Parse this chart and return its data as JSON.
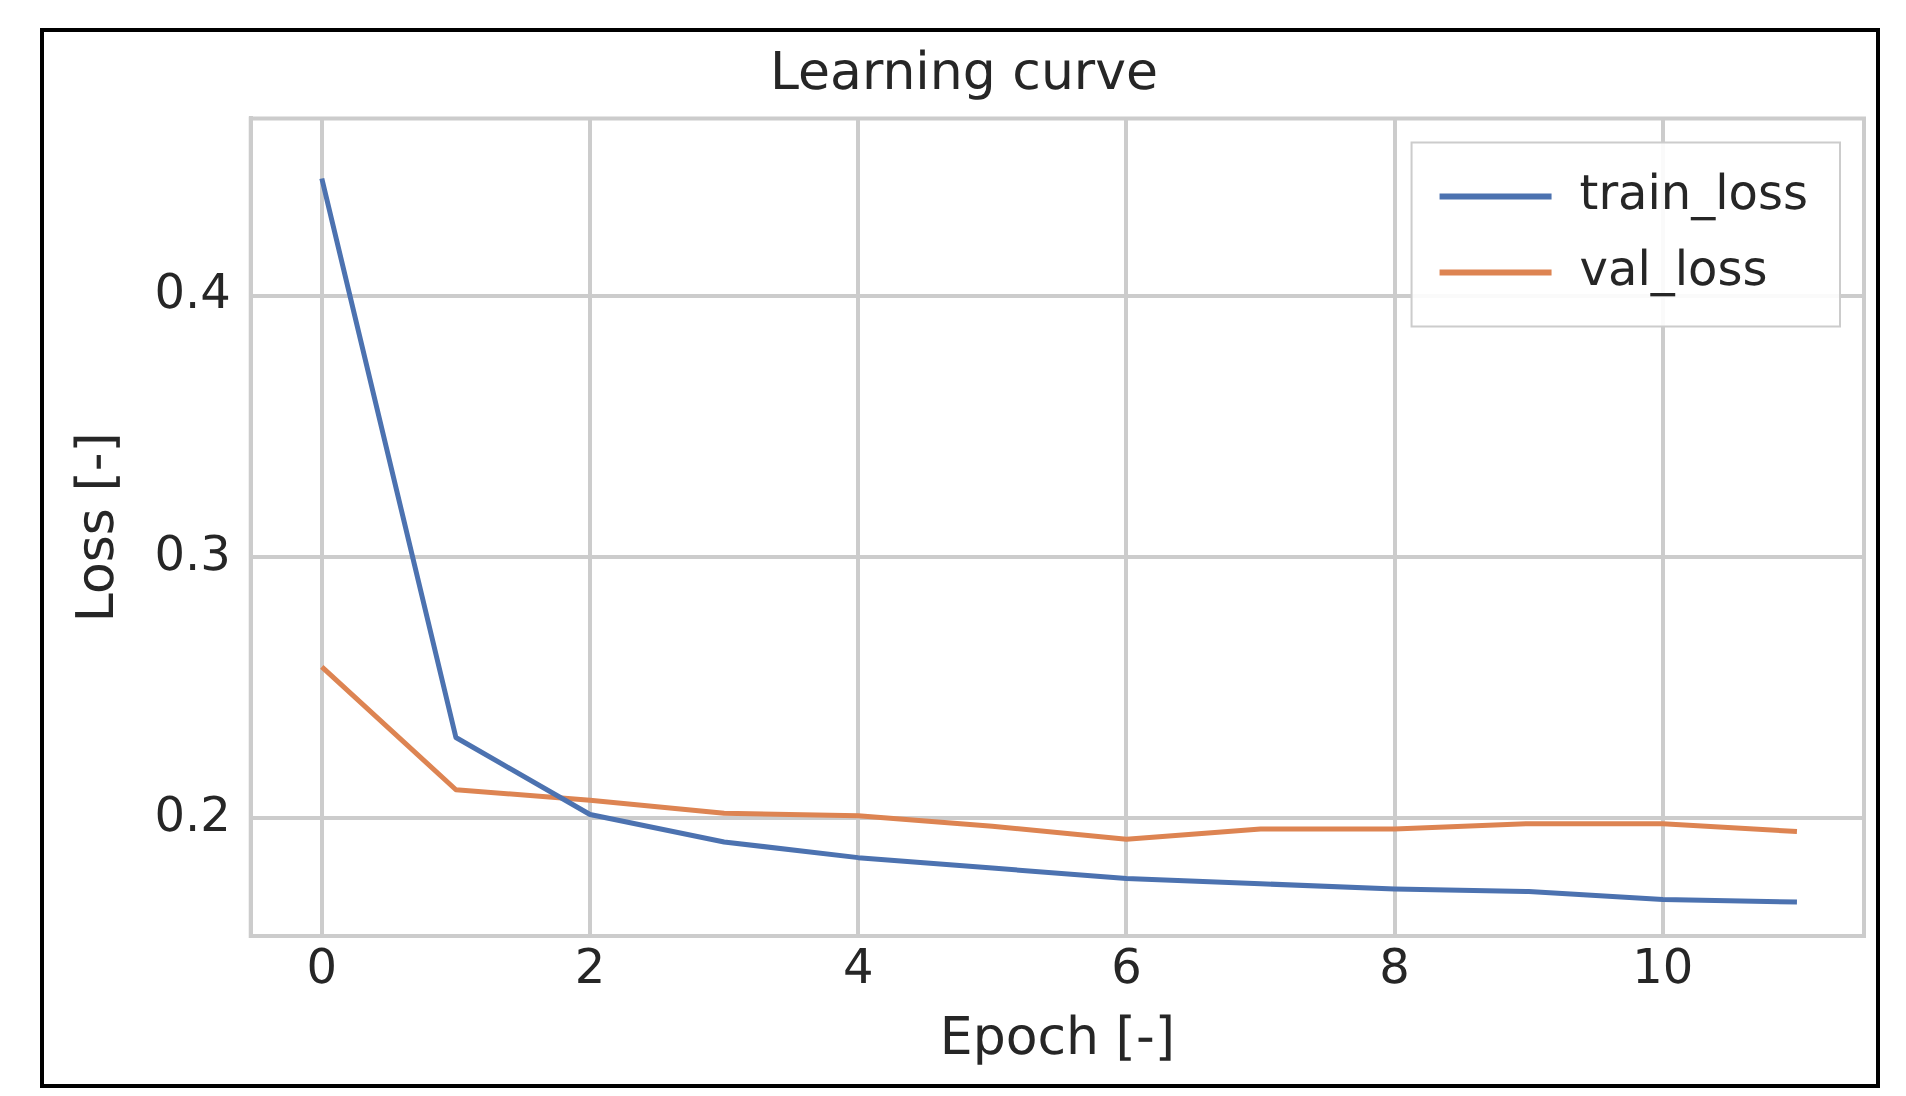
{
  "chart_data": {
    "type": "line",
    "title": "Learning curve",
    "xlabel": "Epoch [-]",
    "ylabel": "Loss [-]",
    "x": [
      0,
      1,
      2,
      3,
      4,
      5,
      6,
      7,
      8,
      9,
      10,
      11
    ],
    "series": [
      {
        "name": "train_loss",
        "color": "#4c72b0",
        "values": [
          0.445,
          0.231,
          0.2015,
          0.191,
          0.185,
          0.181,
          0.177,
          0.175,
          0.173,
          0.172,
          0.169,
          0.168
        ]
      },
      {
        "name": "val_loss",
        "color": "#dd8452",
        "values": [
          0.258,
          0.211,
          0.207,
          0.202,
          0.201,
          0.197,
          0.192,
          0.196,
          0.196,
          0.198,
          0.198,
          0.195
        ]
      }
    ],
    "xlim": [
      -0.53,
      11.5
    ],
    "ylim": [
      0.155,
      0.468
    ],
    "xticks": [
      0,
      2,
      4,
      6,
      8,
      10
    ],
    "yticks": [
      {
        "value": 0.2,
        "label": "0.2"
      },
      {
        "value": 0.3,
        "label": "0.3"
      },
      {
        "value": 0.4,
        "label": "0.4"
      }
    ],
    "grid": true,
    "legend": "top right",
    "marker": "none",
    "line_style": "solid"
  }
}
